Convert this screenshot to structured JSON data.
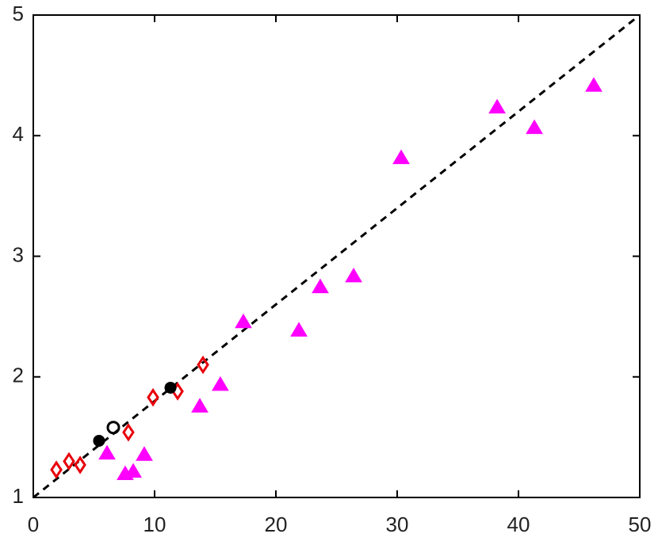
{
  "chart_data": {
    "type": "scatter",
    "xlim": [
      0,
      50
    ],
    "ylim": [
      1,
      5
    ],
    "xticks": [
      0,
      10,
      20,
      30,
      40,
      50
    ],
    "yticks": [
      1,
      2,
      3,
      4,
      5
    ],
    "reference_line": {
      "x": [
        0,
        50
      ],
      "y": [
        1,
        5
      ],
      "color": "#000000",
      "dashed": true
    },
    "series": [
      {
        "color": "#ff00ff",
        "marker": "triangle",
        "filled": true,
        "x": [
          6.08,
          7.58,
          8.24,
          9.15,
          13.73,
          15.42,
          17.32,
          21.9,
          23.66,
          26.41,
          30.33,
          38.24,
          41.31,
          46.21
        ],
        "values": [
          1.37,
          1.2,
          1.22,
          1.36,
          1.76,
          1.94,
          2.46,
          2.39,
          2.75,
          2.84,
          3.82,
          4.24,
          4.07,
          4.42
        ]
      },
      {
        "color": "#e8000b",
        "marker": "diamond",
        "filled": false,
        "x": [
          1.9,
          2.94,
          3.86,
          7.84,
          9.87,
          11.9,
          13.99
        ],
        "values": [
          1.23,
          1.3,
          1.27,
          1.54,
          1.83,
          1.88,
          2.1
        ]
      },
      {
        "color": "#000000",
        "marker": "circle",
        "filled": true,
        "x": [
          5.42,
          11.31
        ],
        "values": [
          1.47,
          1.91
        ]
      },
      {
        "color": "#000000",
        "marker": "circle",
        "filled": false,
        "x": [
          6.6
        ],
        "values": [
          1.58
        ]
      }
    ]
  }
}
